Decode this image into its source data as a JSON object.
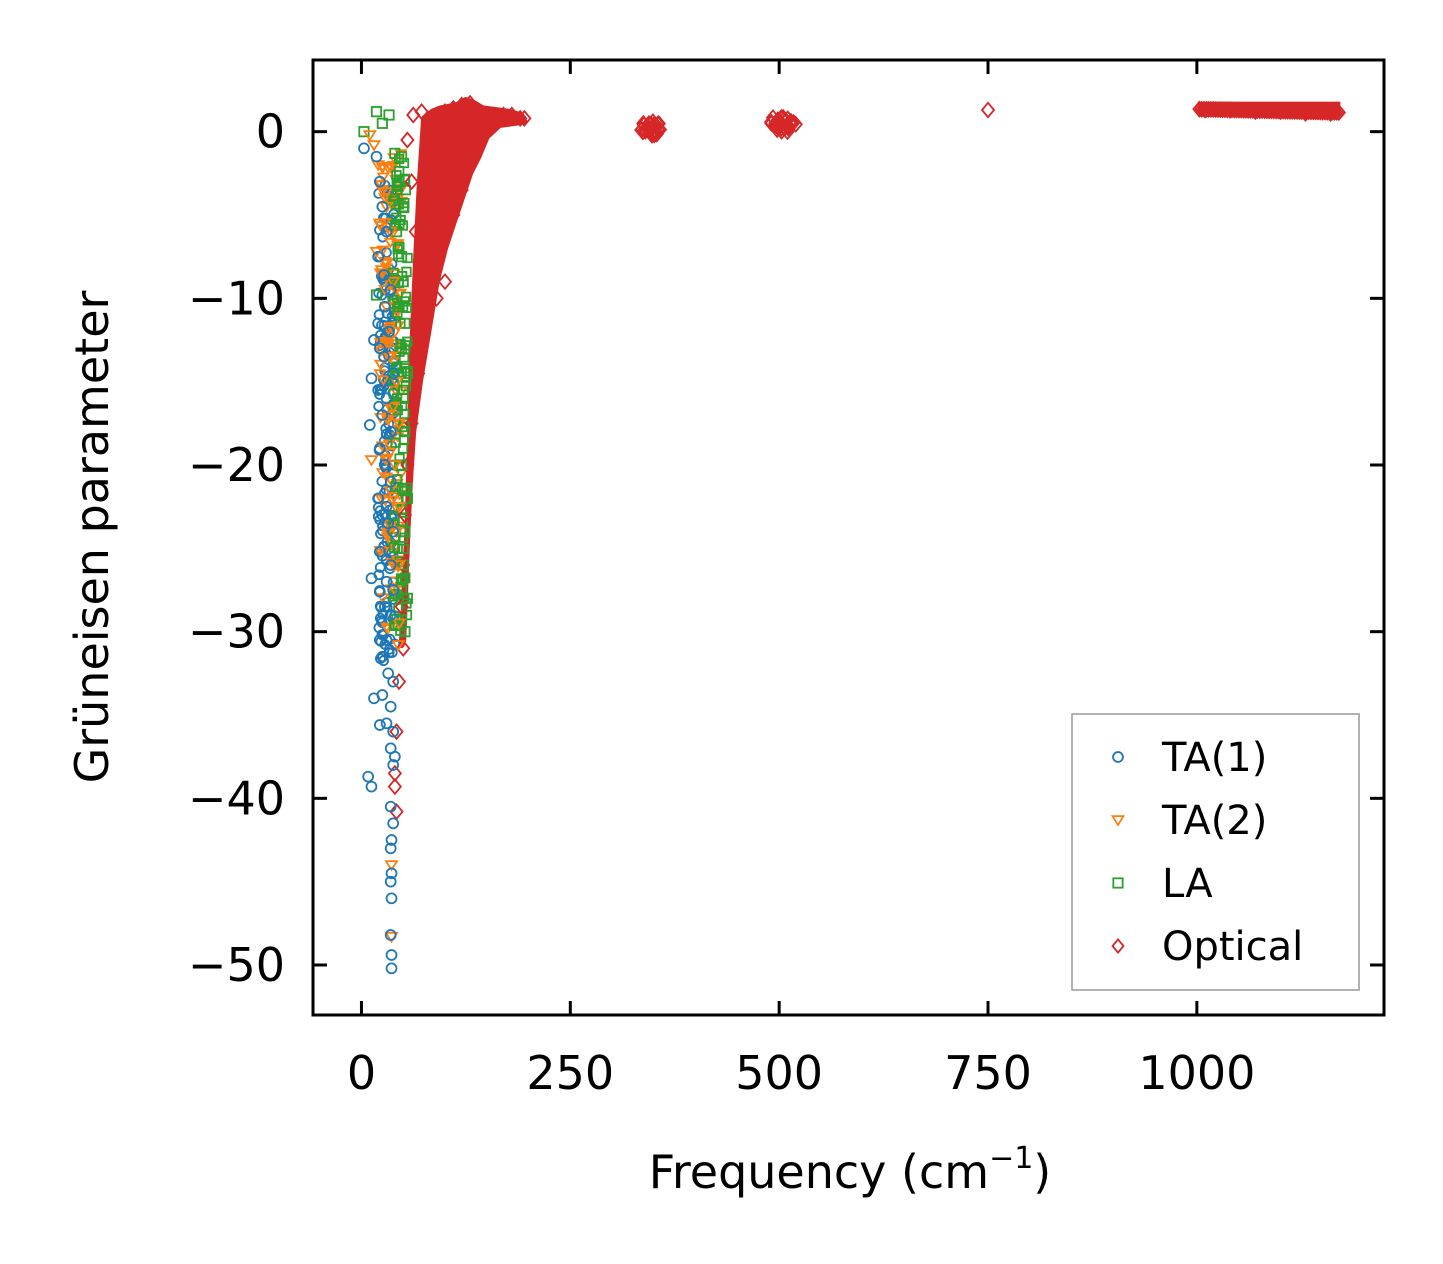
{
  "chart_data": {
    "type": "scatter",
    "title": "",
    "xlabel": "Frequency (cm",
    "xlabel_superscript": "−1",
    "xlabel_suffix": ")",
    "ylabel": "Grüneisen parameter",
    "xlim": [
      -58,
      1224
    ],
    "ylim": [
      -53.0,
      4.3
    ],
    "xticks": [
      0,
      250,
      500,
      750,
      1000
    ],
    "xtick_labels": [
      "0",
      "250",
      "500",
      "750",
      "1000"
    ],
    "yticks": [
      0,
      -10,
      -20,
      -30,
      -40,
      -50
    ],
    "ytick_labels": [
      "0",
      "−10",
      "−20",
      "−30",
      "−40",
      "−50"
    ],
    "grid": false,
    "legend_position": "lower-right",
    "series": [
      {
        "name": "TA(1)",
        "color": "#1f77b4",
        "marker": "circle",
        "points": [
          [
            3,
            -1.0
          ],
          [
            18,
            -1.5
          ],
          [
            22,
            -3.0
          ],
          [
            25,
            -4.5
          ],
          [
            30,
            -6.0
          ],
          [
            20,
            -7.5
          ],
          [
            27,
            -8.6
          ],
          [
            35,
            -9.5
          ],
          [
            28,
            -10.5
          ],
          [
            20,
            -11.5
          ],
          [
            33,
            -12.0
          ],
          [
            15,
            -12.5
          ],
          [
            22,
            -13.0
          ],
          [
            27,
            -13.5
          ],
          [
            38,
            -14.5
          ],
          [
            12,
            -14.8
          ],
          [
            20,
            -15.5
          ],
          [
            30,
            -16.0
          ],
          [
            25,
            -17.0
          ],
          [
            10,
            -17.6
          ],
          [
            35,
            -18.0
          ],
          [
            22,
            -19.0
          ],
          [
            28,
            -20.0
          ],
          [
            35,
            -21.0
          ],
          [
            20,
            -22.0
          ],
          [
            30,
            -22.5
          ],
          [
            25,
            -23.0
          ],
          [
            32,
            -23.5
          ],
          [
            38,
            -24.0
          ],
          [
            22,
            -25.2
          ],
          [
            35,
            -26.0
          ],
          [
            12,
            -26.8
          ],
          [
            30,
            -27.0
          ],
          [
            38,
            -27.5
          ],
          [
            22,
            -27.6
          ],
          [
            28,
            -28.5
          ],
          [
            35,
            -29.0
          ],
          [
            22,
            -30.5
          ],
          [
            30,
            -30.5
          ],
          [
            25,
            -31.5
          ],
          [
            32,
            -32.5
          ],
          [
            38,
            -33.0
          ],
          [
            15,
            -34.0
          ],
          [
            25,
            -33.8
          ],
          [
            35,
            -34.5
          ],
          [
            22,
            -35.6
          ],
          [
            30,
            -35.5
          ],
          [
            38,
            -36.0
          ],
          [
            35,
            -37.0
          ],
          [
            40,
            -37.5
          ],
          [
            38,
            -38.0
          ],
          [
            8,
            -38.7
          ],
          [
            12,
            -39.3
          ],
          [
            35,
            -40.5
          ],
          [
            38,
            -41.5
          ],
          [
            36,
            -42.5
          ],
          [
            35,
            -43.0
          ],
          [
            36,
            -44.5
          ],
          [
            35,
            -45.0
          ],
          [
            36,
            -46.0
          ],
          [
            35,
            -48.2
          ],
          [
            36,
            -49.4
          ],
          [
            36,
            -50.2
          ]
        ]
      },
      {
        "name": "TA(2)",
        "color": "#ff7f0e",
        "marker": "triangle-down",
        "points": [
          [
            10,
            -0.2
          ],
          [
            15,
            -0.8
          ],
          [
            20,
            -2.0
          ],
          [
            25,
            -3.5
          ],
          [
            30,
            -4.5
          ],
          [
            22,
            -5.5
          ],
          [
            35,
            -6.0
          ],
          [
            18,
            -7.2
          ],
          [
            28,
            -7.8
          ],
          [
            38,
            -9.0
          ],
          [
            30,
            -10.5
          ],
          [
            40,
            -12.0
          ],
          [
            35,
            -13.5
          ],
          [
            42,
            -15.0
          ],
          [
            38,
            -16.5
          ],
          [
            45,
            -17.5
          ],
          [
            12,
            -19.7
          ],
          [
            40,
            -20.0
          ],
          [
            45,
            -22.5
          ],
          [
            42,
            -24.0
          ],
          [
            45,
            -26.0
          ],
          [
            40,
            -27.5
          ],
          [
            45,
            -29.5
          ],
          [
            44,
            -30.8
          ],
          [
            36,
            -44.0
          ],
          [
            36,
            -48.3
          ]
        ]
      },
      {
        "name": "LA",
        "color": "#2ca02c",
        "marker": "square",
        "points": [
          [
            3,
            0.0
          ],
          [
            18,
            1.2
          ],
          [
            33,
            1.0
          ],
          [
            25,
            0.5
          ],
          [
            40,
            -1.3
          ],
          [
            48,
            -1.5
          ],
          [
            45,
            -3.0
          ],
          [
            50,
            -4.5
          ],
          [
            42,
            -6.0
          ],
          [
            48,
            -7.5
          ],
          [
            38,
            -8.5
          ],
          [
            50,
            -9.0
          ],
          [
            18,
            -9.8
          ],
          [
            45,
            -10.5
          ],
          [
            52,
            -11.5
          ],
          [
            48,
            -13.0
          ],
          [
            55,
            -14.5
          ],
          [
            50,
            -16.0
          ],
          [
            52,
            -18.0
          ],
          [
            48,
            -20.0
          ],
          [
            55,
            -22.0
          ],
          [
            52,
            -24.0
          ],
          [
            50,
            -26.0
          ],
          [
            55,
            -28.0
          ],
          [
            52,
            -30.0
          ]
        ]
      },
      {
        "name": "Optical",
        "color": "#d62728",
        "marker": "diamond",
        "points": [
          [
            55,
            -0.5
          ],
          [
            62,
            1.0
          ],
          [
            72,
            1.2
          ],
          [
            80,
            0.5
          ],
          [
            90,
            1.0
          ],
          [
            100,
            1.2
          ],
          [
            110,
            1.4
          ],
          [
            120,
            1.6
          ],
          [
            130,
            1.7
          ],
          [
            140,
            1.2
          ],
          [
            150,
            1.0
          ],
          [
            160,
            0.8
          ],
          [
            170,
            1.0
          ],
          [
            180,
            1.0
          ],
          [
            190,
            0.8
          ],
          [
            195,
            0.8
          ],
          [
            60,
            -3.0
          ],
          [
            65,
            -6.0
          ],
          [
            70,
            -9.0
          ],
          [
            75,
            -12.0
          ],
          [
            68,
            -14.5
          ],
          [
            60,
            -17.5
          ],
          [
            55,
            -20.0
          ],
          [
            52,
            -23.0
          ],
          [
            50,
            -26.0
          ],
          [
            48,
            -28.5
          ],
          [
            50,
            -31.0
          ],
          [
            45,
            -33.0
          ],
          [
            42,
            -36.0
          ],
          [
            40,
            -38.5
          ],
          [
            40,
            -39.3
          ],
          [
            42,
            -40.8
          ],
          [
            90,
            -10.0
          ],
          [
            100,
            -9.0
          ],
          [
            110,
            -5.0
          ],
          [
            120,
            -3.5
          ],
          [
            80,
            -8.0
          ],
          [
            340,
            0.1
          ],
          [
            345,
            0.2
          ],
          [
            350,
            0.0
          ],
          [
            335,
            0.1
          ],
          [
            355,
            0.1
          ],
          [
            495,
            0.4
          ],
          [
            500,
            0.5
          ],
          [
            505,
            0.3
          ],
          [
            510,
            0.4
          ],
          [
            515,
            0.5
          ],
          [
            750,
            1.3
          ],
          [
            1010,
            1.3
          ],
          [
            1040,
            1.3
          ],
          [
            1070,
            1.2
          ],
          [
            1100,
            1.2
          ],
          [
            1130,
            1.1
          ],
          [
            1160,
            1.1
          ]
        ]
      }
    ],
    "optical_envelope": {
      "x": [
        75,
        85,
        95,
        105,
        115,
        125,
        135,
        145,
        160,
        175,
        190,
        195,
        180,
        165,
        150,
        140,
        130,
        120,
        110,
        100,
        90,
        80,
        70,
        62,
        58,
        55,
        52,
        50,
        48,
        50,
        52,
        55,
        58,
        60,
        65,
        70
      ],
      "y": [
        0.8,
        1.2,
        1.4,
        1.5,
        1.6,
        1.9,
        1.7,
        1.4,
        1.3,
        1.2,
        1.0,
        0.6,
        0.5,
        0.4,
        -0.3,
        -1.5,
        -2.5,
        -4.0,
        -5.5,
        -7.0,
        -9.0,
        -12.0,
        -15.0,
        -18.0,
        -21.0,
        -24.0,
        -27.0,
        -29.5,
        -30.8,
        -30.5,
        -28.0,
        -24.0,
        -19.0,
        -14.0,
        -8.0,
        -3.0
      ]
    },
    "optical_bands": [
      {
        "x_start": 1003,
        "x_end": 1170,
        "y_start": 1.35,
        "y_end": 1.15
      }
    ],
    "optical_clusters": [
      {
        "x_start": 333,
        "x_end": 358,
        "y": 0.15
      },
      {
        "x_start": 490,
        "x_end": 520,
        "y": 0.45
      }
    ]
  }
}
